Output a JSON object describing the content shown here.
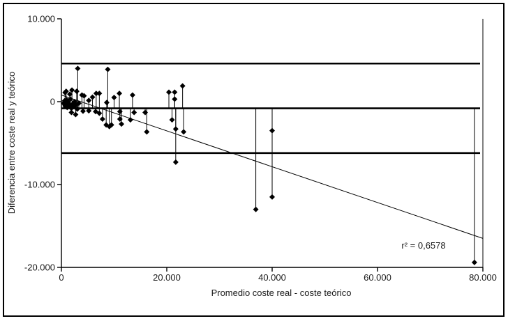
{
  "chart_data": {
    "type": "scatter",
    "title": "",
    "xlabel": "Promedio coste real - coste teórico",
    "ylabel": "Diferencia entre coste real y teórico",
    "annotation": "r² = 0,6578",
    "xlim": [
      0,
      80000
    ],
    "ylim": [
      -20000,
      10000
    ],
    "grid": false,
    "legend": "none",
    "x_ticks": [
      0,
      20000,
      40000,
      60000,
      80000
    ],
    "x_tick_labels": [
      "0",
      "20.000",
      "40.000",
      "60.000",
      "80.000"
    ],
    "y_ticks": [
      10000,
      0,
      -10000,
      -20000
    ],
    "y_tick_labels": [
      "10.000",
      "0",
      "-10.000",
      "-20.000"
    ],
    "mean_line": -800,
    "upper_limit_line": 4600,
    "lower_limit_line": -6200,
    "regression_line": {
      "x1": 0,
      "y1": 800,
      "x2": 80000,
      "y2": -16500
    },
    "full_height_vline_x": 80000,
    "drop_lines_to_mean": true,
    "marker": "diamond",
    "points": [
      [
        400,
        -200
      ],
      [
        600,
        100
      ],
      [
        700,
        -500
      ],
      [
        900,
        -300
      ],
      [
        1000,
        200
      ],
      [
        1100,
        -700
      ],
      [
        1300,
        -100
      ],
      [
        1500,
        -500
      ],
      [
        1700,
        300
      ],
      [
        1900,
        -800
      ],
      [
        2100,
        -300
      ],
      [
        2300,
        -600
      ],
      [
        2500,
        0
      ],
      [
        2700,
        -400
      ],
      [
        3000,
        -900
      ],
      [
        3300,
        -200
      ],
      [
        700,
        1100
      ],
      [
        900,
        1250
      ],
      [
        1600,
        900
      ],
      [
        2000,
        1400
      ],
      [
        2900,
        1250
      ],
      [
        3100,
        4000
      ],
      [
        3900,
        800
      ],
      [
        4300,
        700
      ],
      [
        5200,
        150
      ],
      [
        5900,
        550
      ],
      [
        6600,
        1000
      ],
      [
        7200,
        1000
      ],
      [
        8600,
        -100
      ],
      [
        8800,
        3900
      ],
      [
        10000,
        500
      ],
      [
        11000,
        1000
      ],
      [
        13500,
        800
      ],
      [
        20400,
        1150
      ],
      [
        21500,
        1150
      ],
      [
        21500,
        300
      ],
      [
        23000,
        1900
      ],
      [
        1900,
        -1300
      ],
      [
        2700,
        -1550
      ],
      [
        4100,
        -1150
      ],
      [
        5200,
        -1100
      ],
      [
        6500,
        -1200
      ],
      [
        7200,
        -1400
      ],
      [
        7800,
        -2100
      ],
      [
        8500,
        -2800
      ],
      [
        9100,
        -3000
      ],
      [
        9500,
        -2800
      ],
      [
        11100,
        -1200
      ],
      [
        11100,
        -2100
      ],
      [
        11400,
        -2700
      ],
      [
        13100,
        -2200
      ],
      [
        13800,
        -1300
      ],
      [
        15900,
        -1300
      ],
      [
        16200,
        -3650
      ],
      [
        21000,
        -2200
      ],
      [
        21700,
        -3300
      ],
      [
        23200,
        -3650
      ],
      [
        21700,
        -7300
      ],
      [
        36900,
        -13000
      ],
      [
        40000,
        -3500
      ],
      [
        40000,
        -11500
      ],
      [
        78400,
        -19400
      ]
    ]
  },
  "colors": {
    "foreground": "#000000",
    "background": "#ffffff",
    "marker": "#000000"
  }
}
